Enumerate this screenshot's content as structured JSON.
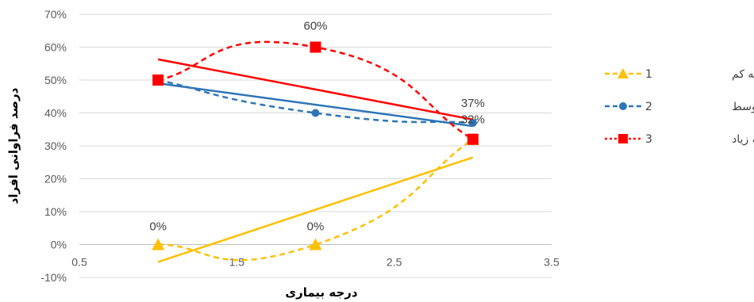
{
  "chart_data": {
    "type": "scatter",
    "title": "",
    "xlabel": "درجه بیماری",
    "ylabel": "درصد فراوانی افراد",
    "xlim": [
      0.5,
      3.5
    ],
    "ylim": [
      -0.1,
      0.7
    ],
    "x_ticks": [
      "0.5",
      "1.5",
      "2.5",
      "3.5"
    ],
    "y_ticks": [
      "-10%",
      "0%",
      "10%",
      "20%",
      "30%",
      "40%",
      "50%",
      "60%",
      "70%"
    ],
    "grid": "horizontal",
    "legend_position": "right",
    "series": [
      {
        "name": "علاقه کم",
        "legend_number": "1",
        "color": "#FFC000",
        "marker": "triangle",
        "x": [
          1,
          2,
          3
        ],
        "y": [
          0.0,
          0.0,
          0.32
        ],
        "labels": [
          "0%",
          "0%",
          ""
        ],
        "trend_line": {
          "from": [
            1,
            -0.053
          ],
          "to": [
            3,
            0.265
          ]
        }
      },
      {
        "name": "علاقه متوسط",
        "legend_number": "2",
        "color": "#2E75B6",
        "marker": "circle",
        "x": [
          1,
          2,
          3
        ],
        "y": [
          0.5,
          0.4,
          0.37
        ],
        "labels": [
          "",
          "",
          "37%"
        ],
        "trend_line": {
          "from": [
            1,
            0.49
          ],
          "to": [
            3,
            0.36
          ]
        }
      },
      {
        "name": "علاقه زیاد",
        "legend_number": "3",
        "color": "#FF0000",
        "marker": "square",
        "x": [
          1,
          2,
          3
        ],
        "y": [
          0.5,
          0.6,
          0.32
        ],
        "labels": [
          "",
          "60%",
          "32%"
        ],
        "trend_line": {
          "from": [
            1,
            0.563
          ],
          "to": [
            3,
            0.38
          ]
        }
      }
    ]
  }
}
